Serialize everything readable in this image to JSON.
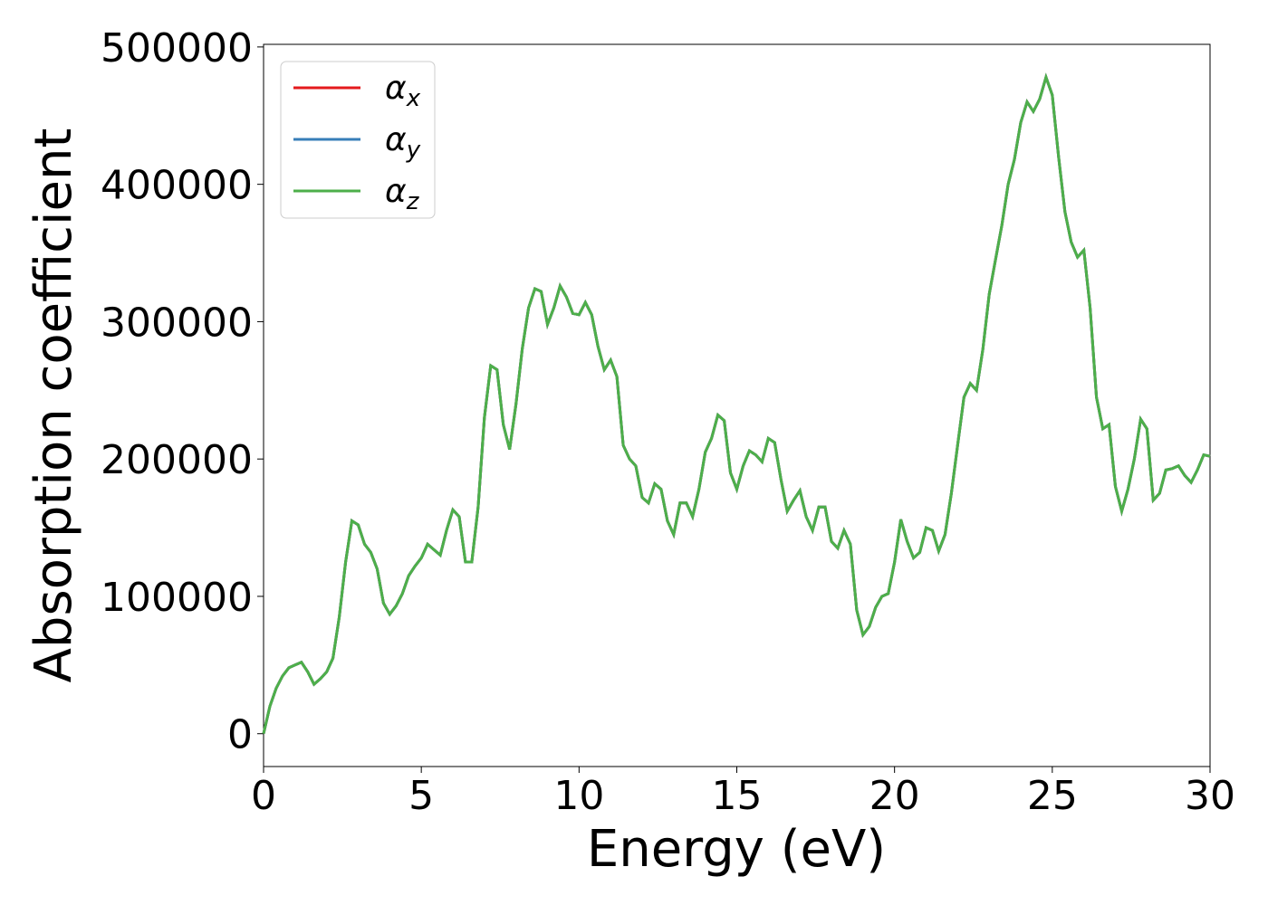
{
  "chart_data": {
    "type": "line",
    "xlabel": "Energy (eV)",
    "ylabel": "Absorption coefficient",
    "x": [
      0,
      0.2,
      0.4,
      0.6,
      0.8,
      1.0,
      1.2,
      1.4,
      1.6,
      1.8,
      2.0,
      2.2,
      2.4,
      2.6,
      2.8,
      3.0,
      3.2,
      3.4,
      3.6,
      3.8,
      4.0,
      4.2,
      4.4,
      4.6,
      4.8,
      5.0,
      5.2,
      5.4,
      5.6,
      5.8,
      6.0,
      6.2,
      6.4,
      6.6,
      6.8,
      7.0,
      7.2,
      7.4,
      7.6,
      7.8,
      8.0,
      8.2,
      8.4,
      8.6,
      8.8,
      9.0,
      9.2,
      9.4,
      9.6,
      9.8,
      10.0,
      10.2,
      10.4,
      10.6,
      10.8,
      11.0,
      11.2,
      11.4,
      11.6,
      11.8,
      12.0,
      12.2,
      12.4,
      12.6,
      12.8,
      13.0,
      13.2,
      13.4,
      13.6,
      13.8,
      14.0,
      14.2,
      14.4,
      14.6,
      14.8,
      15.0,
      15.2,
      15.4,
      15.6,
      15.8,
      16.0,
      16.2,
      16.4,
      16.6,
      16.8,
      17.0,
      17.2,
      17.4,
      17.6,
      17.8,
      18.0,
      18.2,
      18.4,
      18.6,
      18.8,
      19.0,
      19.2,
      19.4,
      19.6,
      19.8,
      20.0,
      20.2,
      20.4,
      20.6,
      20.8,
      21.0,
      21.2,
      21.4,
      21.6,
      21.8,
      22.0,
      22.2,
      22.4,
      22.6,
      22.8,
      23.0,
      23.2,
      23.4,
      23.6,
      23.8,
      24.0,
      24.2,
      24.4,
      24.6,
      24.8,
      25.0,
      25.2,
      25.4,
      25.6,
      25.8,
      26.0,
      26.2,
      26.4,
      26.6,
      26.8,
      27.0,
      27.2,
      27.4,
      27.6,
      27.8,
      28.0,
      28.2,
      28.4,
      28.6,
      28.8,
      29.0,
      29.2,
      29.4,
      29.6,
      29.8,
      30.0
    ],
    "series": [
      {
        "name": "αx",
        "color": "#e41a1c",
        "values": [
          0,
          20000,
          33000,
          42000,
          48000,
          50000,
          52000,
          45000,
          36000,
          40000,
          45000,
          55000,
          85000,
          125000,
          155000,
          152000,
          138000,
          132000,
          120000,
          95000,
          87000,
          93000,
          102000,
          115000,
          122000,
          128000,
          138000,
          134000,
          130000,
          148000,
          163000,
          158000,
          125000,
          125000,
          165000,
          230000,
          268000,
          265000,
          225000,
          207000,
          240000,
          280000,
          310000,
          324000,
          322000,
          298000,
          310000,
          326000,
          318000,
          306000,
          305000,
          314000,
          305000,
          282000,
          265000,
          272000,
          260000,
          210000,
          200000,
          195000,
          172000,
          168000,
          182000,
          178000,
          155000,
          145000,
          168000,
          168000,
          158000,
          178000,
          205000,
          215000,
          232000,
          228000,
          190000,
          178000,
          195000,
          206000,
          203000,
          198000,
          215000,
          212000,
          185000,
          162000,
          170000,
          177000,
          158000,
          148000,
          165000,
          165000,
          140000,
          135000,
          148000,
          138000,
          90000,
          72000,
          78000,
          92000,
          100000,
          102000,
          125000,
          156000,
          140000,
          128000,
          132000,
          150000,
          148000,
          133000,
          145000,
          175000,
          210000,
          245000,
          255000,
          250000,
          280000,
          320000,
          345000,
          370000,
          400000,
          418000,
          445000,
          460000,
          453000,
          462000,
          478000,
          465000,
          420000,
          380000,
          358000,
          347000,
          352000,
          310000,
          245000,
          222000,
          225000,
          180000,
          162000,
          178000,
          200000,
          229000,
          222000,
          170000,
          175000,
          192000,
          193000,
          195000,
          188000,
          183000,
          192000,
          203000,
          202000
        ]
      },
      {
        "name": "αy",
        "color": "#377eb8",
        "values": [
          0,
          20000,
          33000,
          42000,
          48000,
          50000,
          52000,
          45000,
          36000,
          40000,
          45000,
          55000,
          85000,
          125000,
          155000,
          152000,
          138000,
          132000,
          120000,
          95000,
          87000,
          93000,
          102000,
          115000,
          122000,
          128000,
          138000,
          134000,
          130000,
          148000,
          163000,
          158000,
          125000,
          125000,
          165000,
          230000,
          268000,
          265000,
          225000,
          207000,
          240000,
          280000,
          310000,
          324000,
          322000,
          298000,
          310000,
          326000,
          318000,
          306000,
          305000,
          314000,
          305000,
          282000,
          265000,
          272000,
          260000,
          210000,
          200000,
          195000,
          172000,
          168000,
          182000,
          178000,
          155000,
          145000,
          168000,
          168000,
          158000,
          178000,
          205000,
          215000,
          232000,
          228000,
          190000,
          178000,
          195000,
          206000,
          203000,
          198000,
          215000,
          212000,
          185000,
          162000,
          170000,
          177000,
          158000,
          148000,
          165000,
          165000,
          140000,
          135000,
          148000,
          138000,
          90000,
          72000,
          78000,
          92000,
          100000,
          102000,
          125000,
          156000,
          140000,
          128000,
          132000,
          150000,
          148000,
          133000,
          145000,
          175000,
          210000,
          245000,
          255000,
          250000,
          280000,
          320000,
          345000,
          370000,
          400000,
          418000,
          445000,
          460000,
          453000,
          462000,
          478000,
          465000,
          420000,
          380000,
          358000,
          347000,
          352000,
          310000,
          245000,
          222000,
          225000,
          180000,
          162000,
          178000,
          200000,
          229000,
          222000,
          170000,
          175000,
          192000,
          193000,
          195000,
          188000,
          183000,
          192000,
          203000,
          202000
        ]
      },
      {
        "name": "αz",
        "color": "#4daf4a",
        "values": [
          0,
          20000,
          33000,
          42000,
          48000,
          50000,
          52000,
          45000,
          36000,
          40000,
          45000,
          55000,
          85000,
          125000,
          155000,
          152000,
          138000,
          132000,
          120000,
          95000,
          87000,
          93000,
          102000,
          115000,
          122000,
          128000,
          138000,
          134000,
          130000,
          148000,
          163000,
          158000,
          125000,
          125000,
          165000,
          230000,
          268000,
          265000,
          225000,
          207000,
          240000,
          280000,
          310000,
          324000,
          322000,
          298000,
          310000,
          326000,
          318000,
          306000,
          305000,
          314000,
          305000,
          282000,
          265000,
          272000,
          260000,
          210000,
          200000,
          195000,
          172000,
          168000,
          182000,
          178000,
          155000,
          145000,
          168000,
          168000,
          158000,
          178000,
          205000,
          215000,
          232000,
          228000,
          190000,
          178000,
          195000,
          206000,
          203000,
          198000,
          215000,
          212000,
          185000,
          162000,
          170000,
          177000,
          158000,
          148000,
          165000,
          165000,
          140000,
          135000,
          148000,
          138000,
          90000,
          72000,
          78000,
          92000,
          100000,
          102000,
          125000,
          156000,
          140000,
          128000,
          132000,
          150000,
          148000,
          133000,
          145000,
          175000,
          210000,
          245000,
          255000,
          250000,
          280000,
          320000,
          345000,
          370000,
          400000,
          418000,
          445000,
          460000,
          453000,
          462000,
          478000,
          465000,
          420000,
          380000,
          358000,
          347000,
          352000,
          310000,
          245000,
          222000,
          225000,
          180000,
          162000,
          178000,
          200000,
          229000,
          222000,
          170000,
          175000,
          192000,
          193000,
          195000,
          188000,
          183000,
          192000,
          203000,
          202000
        ]
      }
    ],
    "xlim": [
      0,
      30
    ],
    "xticks": [
      0,
      5,
      10,
      15,
      20,
      25,
      30
    ],
    "ylim": [
      -23900,
      501900
    ],
    "yticks": [
      0,
      100000,
      200000,
      300000,
      400000,
      500000
    ],
    "grid": false,
    "legend": "upper left"
  }
}
